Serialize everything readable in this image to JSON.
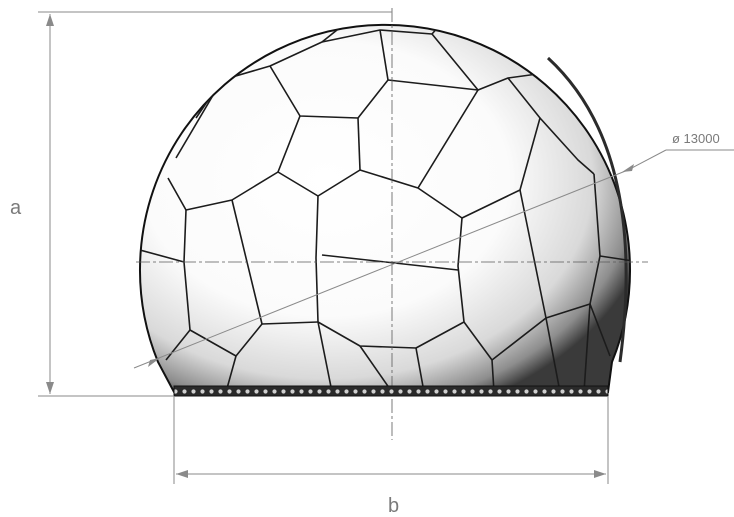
{
  "drawing": {
    "dimension_a_label": "a",
    "dimension_b_label": "b",
    "diameter_label": "ø 13000",
    "colors": {
      "line": "#1c1c1c",
      "dimension": "#8a8a8a",
      "label": "#7a7a7a"
    }
  }
}
